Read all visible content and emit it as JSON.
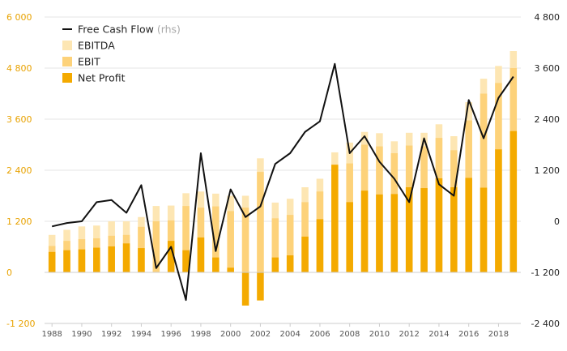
{
  "chart_data": {
    "type": "bar",
    "title": "",
    "xlabel": "",
    "ylabel": "",
    "years": [
      1988,
      1989,
      1990,
      1991,
      1992,
      1993,
      1994,
      1995,
      1996,
      1997,
      1998,
      1999,
      2000,
      2001,
      2002,
      2003,
      2004,
      2005,
      2006,
      2007,
      2008,
      2009,
      2010,
      2011,
      2012,
      2013,
      2014,
      2015,
      2016,
      2017,
      2018,
      2019
    ],
    "x_tick_labels": [
      "1988",
      "1990",
      "1992",
      "1994",
      "1996",
      "1998",
      "2000",
      "2002",
      "2004",
      "2006",
      "2008",
      "2010",
      "2012",
      "2014",
      "2016",
      "2018"
    ],
    "left_axis": {
      "min": -1200,
      "max": 6000,
      "ticks": [
        -1200,
        0,
        1200,
        2400,
        3600,
        4800,
        6000
      ],
      "tick_labels": [
        "-1 200",
        "0",
        "1 200",
        "2 400",
        "3 600",
        "4 800",
        "6 000"
      ]
    },
    "right_axis": {
      "min": -2400,
      "max": 4800,
      "ticks": [
        -2400,
        -1200,
        0,
        1200,
        2400,
        3600,
        4800
      ],
      "tick_labels": [
        "-2 400",
        "-1 200",
        "0",
        "1 200",
        "2 400",
        "3 600",
        "4 800"
      ]
    },
    "grid": true,
    "legend_position": "top-left",
    "series": [
      {
        "name": "EBITDA",
        "kind": "bar",
        "axis": "left",
        "color": "#FDE6B3",
        "values": [
          880,
          1000,
          1080,
          1100,
          1200,
          1200,
          1300,
          1560,
          1570,
          1860,
          1900,
          1850,
          1800,
          1800,
          2680,
          1640,
          1730,
          2000,
          2200,
          2820,
          3050,
          3300,
          3270,
          3080,
          3280,
          3280,
          3480,
          3200,
          4000,
          4550,
          4850,
          5200
        ]
      },
      {
        "name": "EBIT",
        "kind": "bar",
        "axis": "left",
        "color": "#FDD27A",
        "values": [
          620,
          740,
          780,
          800,
          860,
          880,
          1070,
          1200,
          1220,
          1560,
          1520,
          1550,
          1440,
          1520,
          2360,
          1270,
          1350,
          1650,
          1900,
          2490,
          2560,
          3000,
          2960,
          2800,
          2980,
          2960,
          3160,
          2870,
          3570,
          4200,
          4450,
          4800
        ]
      },
      {
        "name": "Net Profit",
        "kind": "bar",
        "axis": "left",
        "color": "#F4AA00",
        "values": [
          480,
          520,
          540,
          580,
          610,
          680,
          570,
          0,
          740,
          520,
          820,
          350,
          110,
          -780,
          -660,
          350,
          400,
          840,
          1250,
          2530,
          1650,
          1920,
          1830,
          1840,
          2000,
          1980,
          2210,
          2000,
          2220,
          1990,
          2890,
          3320
        ]
      },
      {
        "name": "Free Cash Flow",
        "unit": "(rhs)",
        "kind": "line",
        "axis": "right",
        "color": "#111111",
        "values": [
          -120,
          -40,
          0,
          450,
          500,
          200,
          850,
          -1100,
          -600,
          -1850,
          1600,
          -700,
          750,
          100,
          350,
          1350,
          1600,
          2100,
          2350,
          3700,
          1600,
          2000,
          1400,
          1000,
          450,
          1950,
          870,
          600,
          2850,
          1950,
          2900,
          3400
        ]
      }
    ]
  }
}
